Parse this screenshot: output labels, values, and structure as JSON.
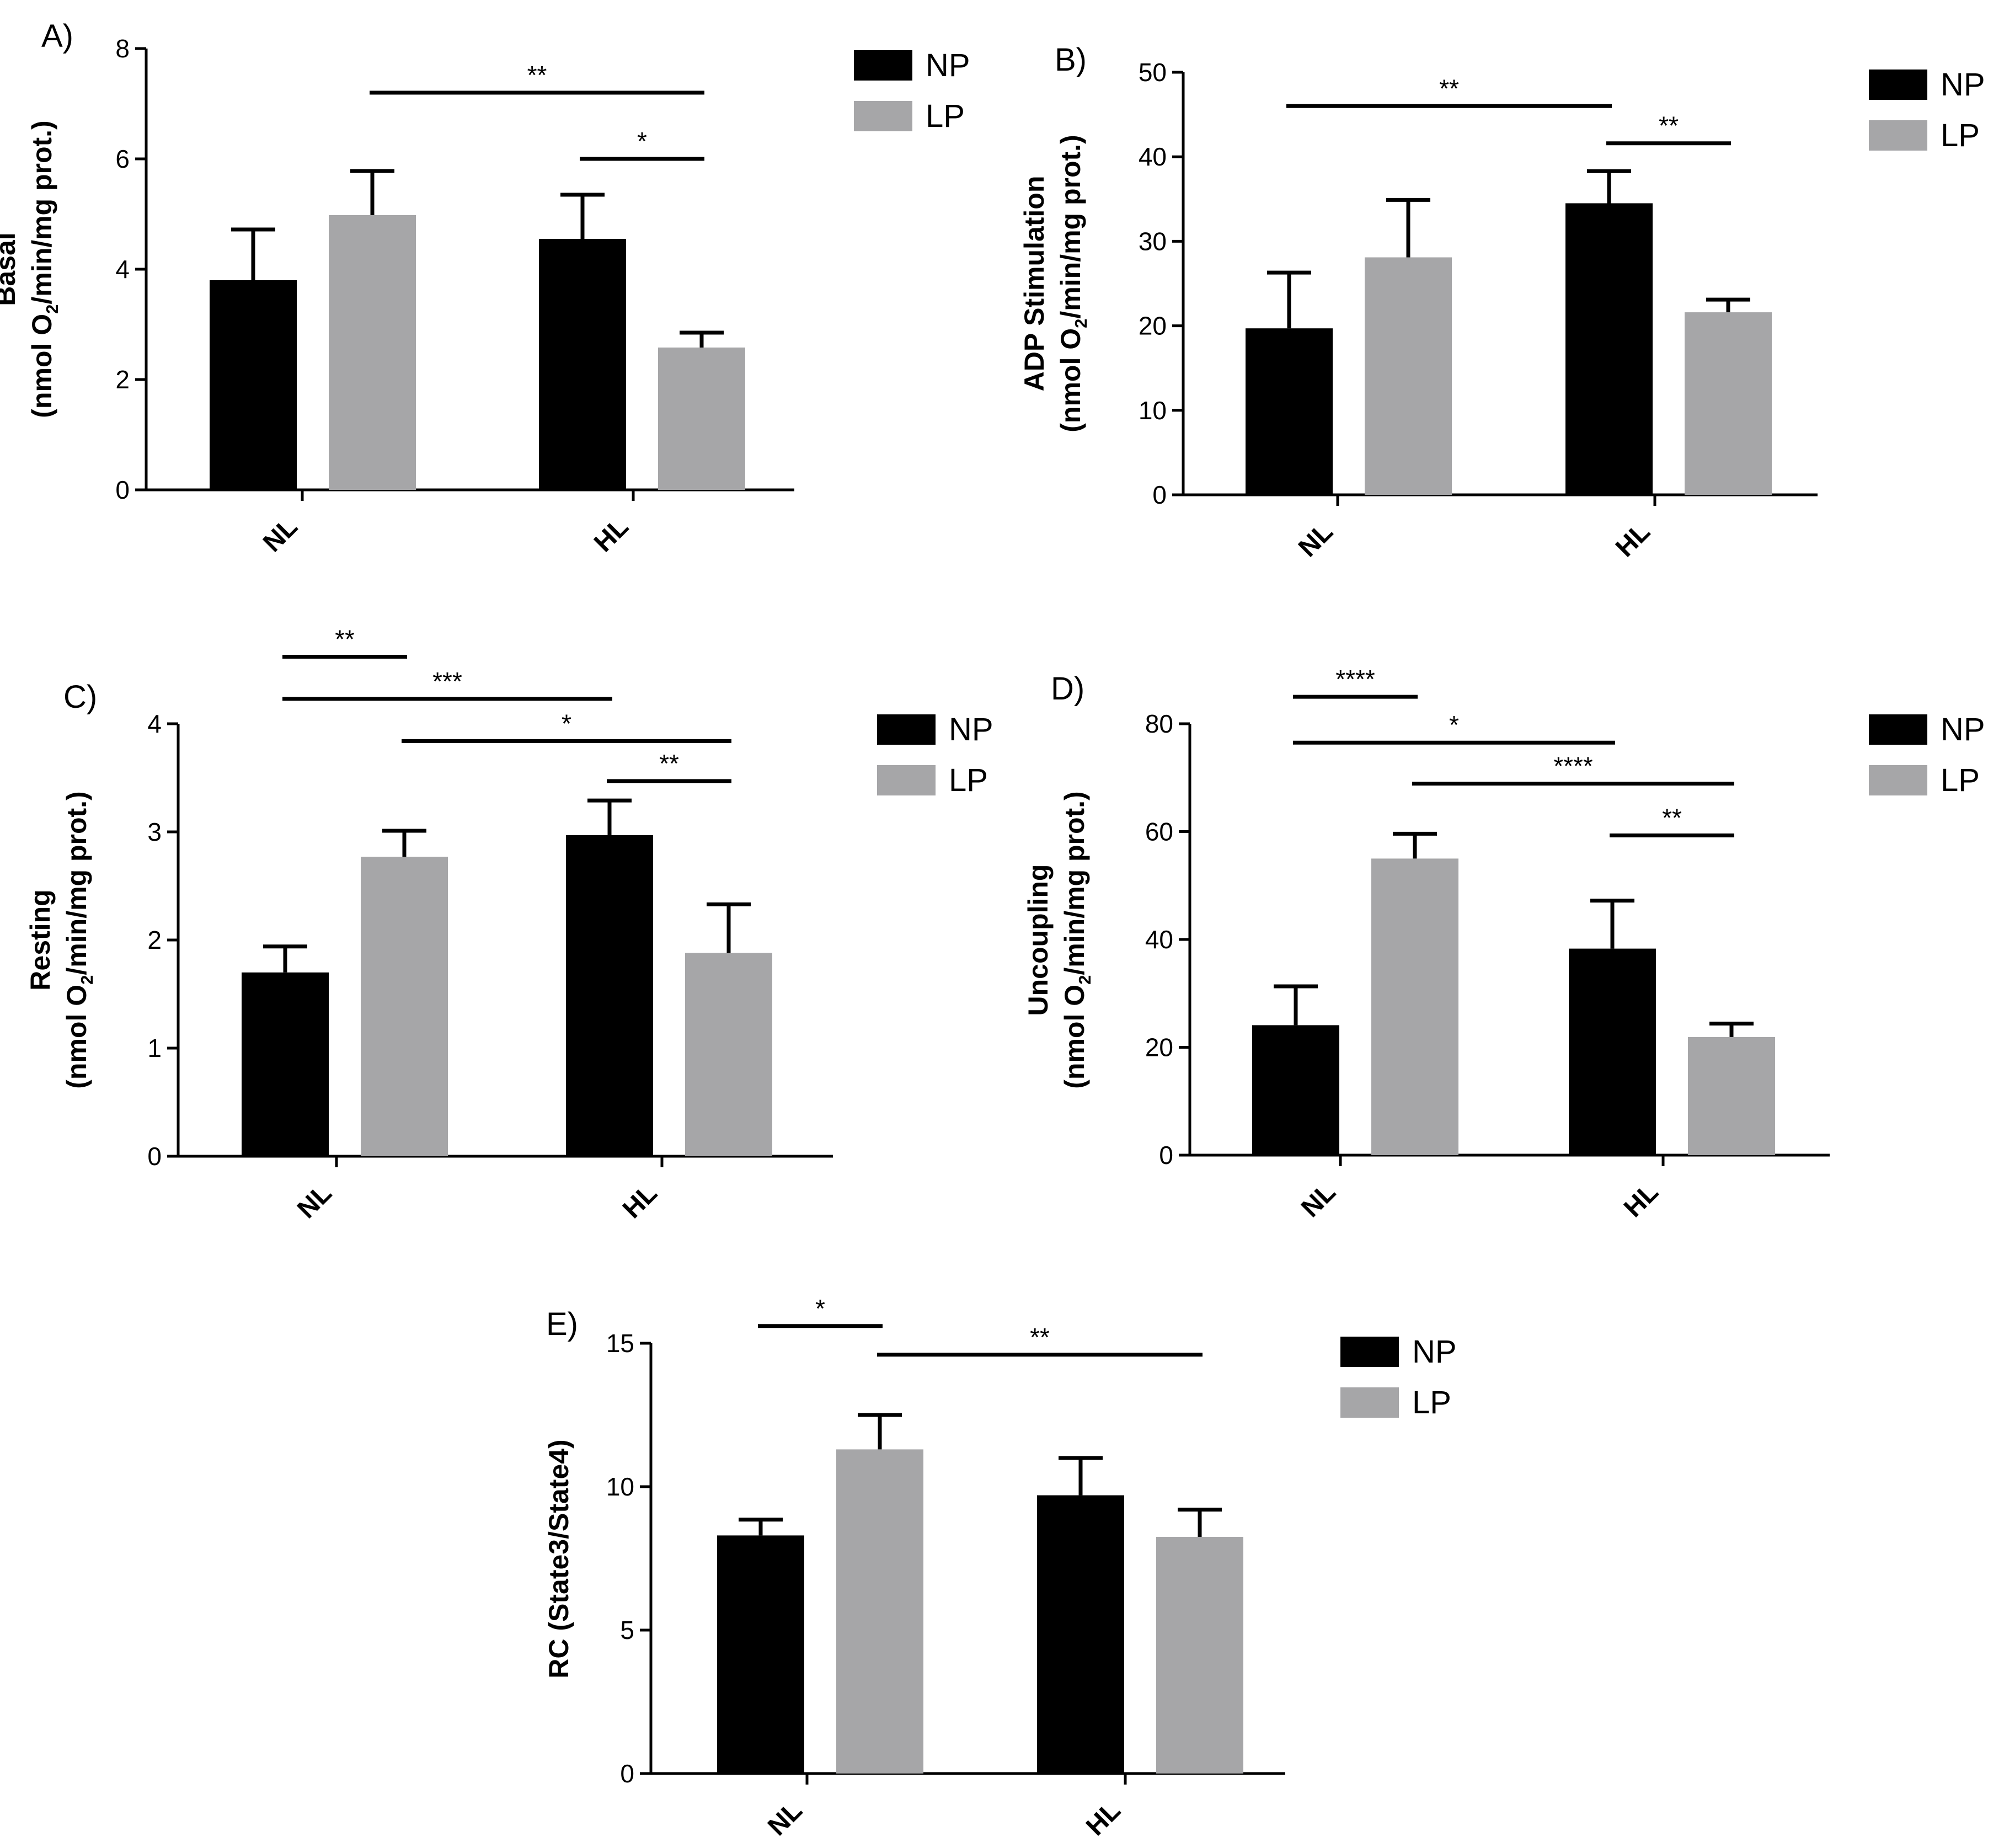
{
  "colors": {
    "NP": "#000000",
    "LP": "#a6a6a8"
  },
  "legend": [
    "NP",
    "LP"
  ],
  "categories": [
    "NL",
    "HL"
  ],
  "chart_data": [
    {
      "panel": "A)",
      "type": "bar",
      "ylabel_main": "Basal",
      "ylabel_unit_pre": "(nmol O",
      "ylabel_unit_sub": "2",
      "ylabel_unit_post": "/min/mg prot.)",
      "categories": [
        "NL",
        "HL"
      ],
      "ylim": [
        0,
        8
      ],
      "yticks": [
        0,
        2,
        4,
        6,
        8
      ],
      "series": [
        {
          "name": "NP",
          "values": [
            3.8,
            4.55
          ],
          "errors": [
            0.92,
            0.8
          ]
        },
        {
          "name": "LP",
          "values": [
            4.98,
            2.58
          ],
          "errors": [
            0.8,
            0.27
          ]
        }
      ],
      "significance": [
        {
          "from": "NL-LP",
          "to": "HL-LP",
          "label": "**",
          "y": 7.2
        },
        {
          "from": "HL-NP",
          "to": "HL-LP",
          "label": "*",
          "y": 6.0
        }
      ],
      "legend": "top-right"
    },
    {
      "panel": "B)",
      "type": "bar",
      "ylabel_main": "ADP Stimulation",
      "ylabel_unit_pre": "(nmol O",
      "ylabel_unit_sub": "2",
      "ylabel_unit_post": "/min/mg prot.)",
      "categories": [
        "NL",
        "HL"
      ],
      "ylim": [
        0,
        50
      ],
      "yticks": [
        0,
        10,
        20,
        30,
        40,
        50
      ],
      "series": [
        {
          "name": "NP",
          "values": [
            19.7,
            34.5
          ],
          "errors": [
            6.6,
            3.8
          ]
        },
        {
          "name": "LP",
          "values": [
            28.1,
            21.6
          ],
          "errors": [
            6.8,
            1.5
          ]
        }
      ],
      "significance": [
        {
          "from": "NL-NP",
          "to": "HL-NP",
          "label": "**",
          "y": 46
        },
        {
          "from": "HL-NP",
          "to": "HL-LP",
          "label": "**",
          "y": 41.6
        }
      ],
      "legend": "top-right"
    },
    {
      "panel": "C)",
      "type": "bar",
      "ylabel_main": "Resting",
      "ylabel_unit_pre": "(nmol O",
      "ylabel_unit_sub": "2",
      "ylabel_unit_post": "/min/mg prot.)",
      "categories": [
        "NL",
        "HL"
      ],
      "ylim": [
        0,
        4
      ],
      "yticks": [
        0,
        1,
        2,
        3,
        4
      ],
      "series": [
        {
          "name": "NP",
          "values": [
            1.7,
            2.97
          ],
          "errors": [
            0.24,
            0.32
          ]
        },
        {
          "name": "LP",
          "values": [
            2.77,
            1.88
          ],
          "errors": [
            0.24,
            0.45
          ]
        }
      ],
      "significance": [
        {
          "from": "NL-NP",
          "to": "NL-LP",
          "label": "**",
          "y": 4.62
        },
        {
          "from": "NL-NP",
          "to": "HL-NP",
          "label": "***",
          "y": 4.23
        },
        {
          "from": "NL-LP",
          "to": "HL-LP",
          "label": "*",
          "y": 3.84
        },
        {
          "from": "HL-NP",
          "to": "HL-LP",
          "label": "**",
          "y": 3.47
        }
      ],
      "legend": "top-right"
    },
    {
      "panel": "D)",
      "type": "bar",
      "ylabel_main": "Uncoupling",
      "ylabel_unit_pre": "(nmol O",
      "ylabel_unit_sub": "2",
      "ylabel_unit_post": "/min/mg prot.)",
      "categories": [
        "NL",
        "HL"
      ],
      "ylim": [
        0,
        80
      ],
      "yticks": [
        0,
        20,
        40,
        60,
        80
      ],
      "series": [
        {
          "name": "NP",
          "values": [
            24.1,
            38.3
          ],
          "errors": [
            7.2,
            8.9
          ]
        },
        {
          "name": "LP",
          "values": [
            55.0,
            21.9
          ],
          "errors": [
            4.6,
            2.5
          ]
        }
      ],
      "significance": [
        {
          "from": "NL-NP",
          "to": "NL-LP",
          "label": "****",
          "y": 85
        },
        {
          "from": "NL-NP",
          "to": "HL-NP",
          "label": "*",
          "y": 76.5
        },
        {
          "from": "NL-LP",
          "to": "HL-LP",
          "label": "****",
          "y": 68.9
        },
        {
          "from": "HL-NP",
          "to": "HL-LP",
          "label": "**",
          "y": 59.3
        }
      ],
      "legend": "top-right"
    },
    {
      "panel": "E)",
      "type": "bar",
      "ylabel_main": "RC (State3/State4)",
      "ylabel_unit_pre": "",
      "ylabel_unit_sub": "",
      "ylabel_unit_post": "",
      "categories": [
        "NL",
        "HL"
      ],
      "ylim": [
        0,
        15
      ],
      "yticks": [
        0,
        5,
        10,
        15
      ],
      "series": [
        {
          "name": "NP",
          "values": [
            8.3,
            9.7
          ],
          "errors": [
            0.55,
            1.3
          ]
        },
        {
          "name": "LP",
          "values": [
            11.3,
            8.25
          ],
          "errors": [
            1.2,
            0.95
          ]
        }
      ],
      "significance": [
        {
          "from": "NL-NP",
          "to": "NL-LP",
          "label": "*",
          "y": 15.6
        },
        {
          "from": "NL-LP",
          "to": "HL-LP",
          "label": "**",
          "y": 14.6
        }
      ],
      "legend": "top-right"
    }
  ]
}
